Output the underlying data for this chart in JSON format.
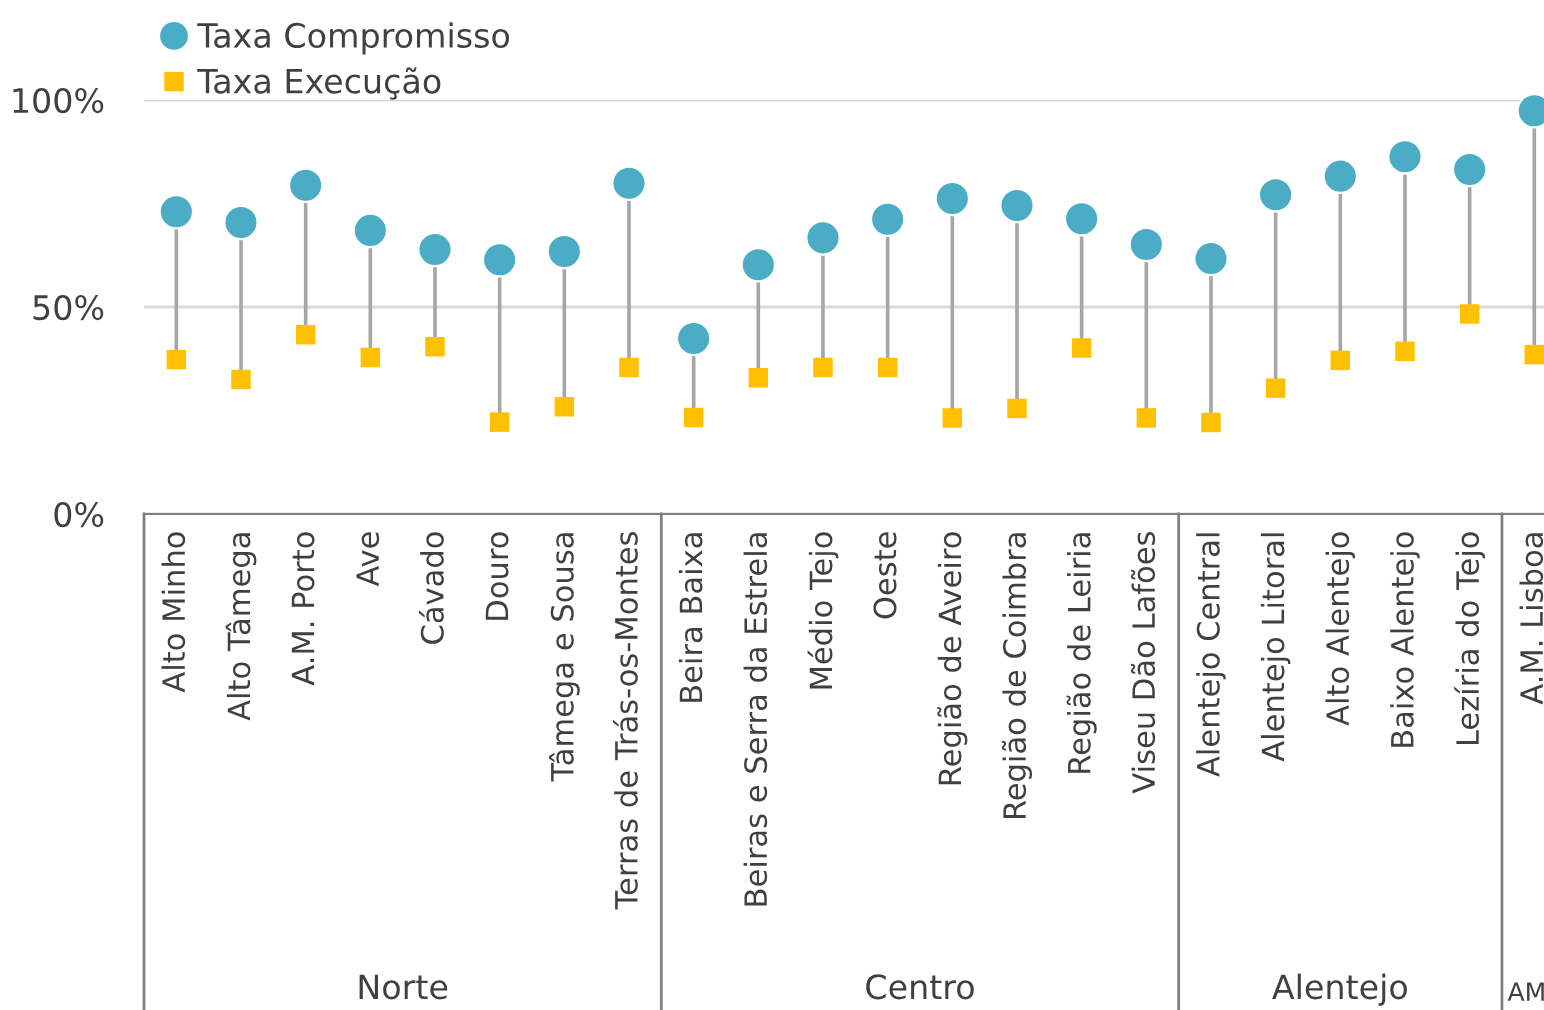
{
  "chart_data": {
    "type": "lollipop",
    "categories": [
      "Alto Minho",
      "Alto Tâmega",
      "A.M. Porto",
      "Ave",
      "Cávado",
      "Douro",
      "Tâmega e Sousa",
      "Terras de Trás-os-Montes",
      "Beira Baixa",
      "Beiras e Serra da Estrela",
      "Médio Tejo",
      "Oeste",
      "Região de Aveiro",
      "Região de Coimbra",
      "Região de Leiria",
      "Viseu Dão Lafões",
      "Alentejo Central",
      "Alentejo Litoral",
      "Alto Alentejo",
      "Baixo Alentejo",
      "Lezíria do Tejo",
      "A.M. Lisboa"
    ],
    "series": [
      {
        "name": "Taxa Compromisso",
        "marker": "circle",
        "color": "#4bacc6",
        "values": [
          73,
          70.4,
          79.4,
          68.5,
          63.9,
          61.4,
          63.4,
          79.9,
          42.4,
          60.2,
          66.7,
          71.2,
          76.2,
          74.5,
          71.3,
          65.1,
          61.7,
          77.1,
          81.6,
          86.3,
          83.2,
          97.4
        ]
      },
      {
        "name": "Taxa Execução",
        "marker": "square",
        "color": "#ffc000",
        "values": [
          37.3,
          32.5,
          43.3,
          37.8,
          40.4,
          22.2,
          25.9,
          35.4,
          23.3,
          32.9,
          35.4,
          35.4,
          23.2,
          25.5,
          40.1,
          23.2,
          22.1,
          30.4,
          37.1,
          39.3,
          48.3,
          38.5
        ]
      }
    ],
    "ylim": [
      0,
      100
    ],
    "yticks": [
      {
        "value": 0,
        "label": "0%"
      },
      {
        "value": 50,
        "label": "50%"
      },
      {
        "value": 100,
        "label": "100%"
      }
    ],
    "grid": "y",
    "legend": "top left",
    "annotations": [
      "Norte",
      "Centro",
      "Alentejo",
      "AM"
    ]
  }
}
